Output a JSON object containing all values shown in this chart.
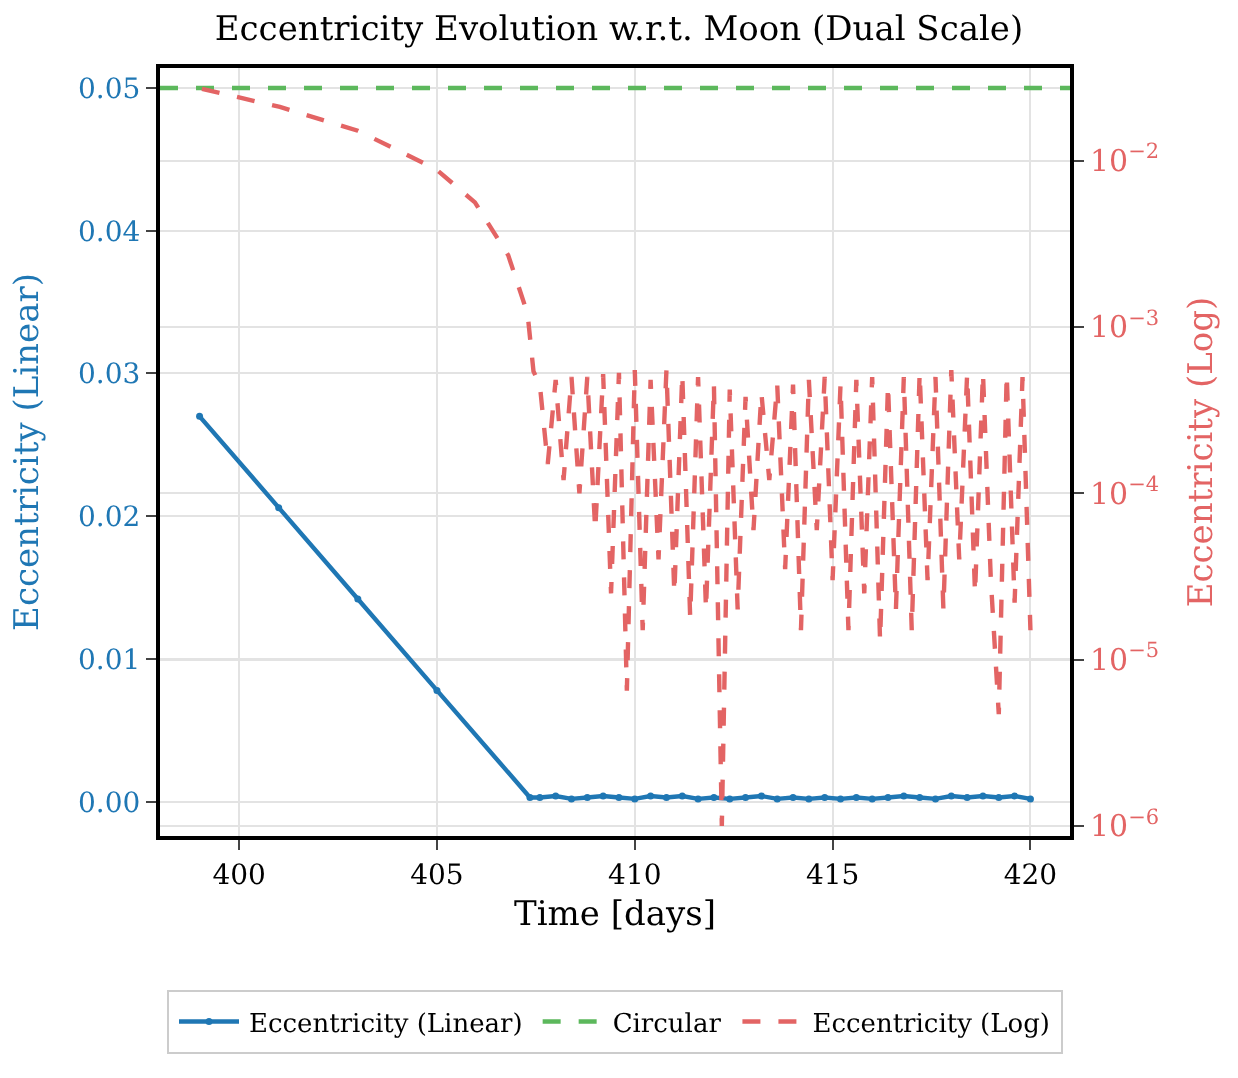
{
  "chart_data": {
    "type": "line",
    "title": "Eccentricity Evolution w.r.t. Moon (Dual Scale)",
    "xlabel": "Time [days]",
    "ylabel": "Eccentricity (Linear)",
    "y2label": "Eccentricity (Log)",
    "xlim": [
      398,
      421
    ],
    "xticks": [
      400,
      405,
      410,
      415,
      420
    ],
    "ylim": [
      -0.0024,
      0.0514
    ],
    "yticks": [
      {
        "value": 0,
        "label": "0.00"
      },
      {
        "value": 0.01,
        "label": "0.01"
      },
      {
        "value": 0.02,
        "label": "0.02"
      },
      {
        "value": 0.03,
        "label": "0.03"
      },
      {
        "value": 0.04,
        "label": "0.04"
      },
      {
        "value": 0.05,
        "label": "0.05"
      }
    ],
    "y2lim": [
      8.7e-07,
      0.036
    ],
    "y2ticks": [
      {
        "value": 1e-06,
        "label": "10$^{−6}$"
      },
      {
        "value": 1e-05,
        "label": "10$^{−5}$"
      },
      {
        "value": 0.0001,
        "label": "10$^{−4}$"
      },
      {
        "value": 0.001,
        "label": "10$^{−3}$"
      },
      {
        "value": 0.01,
        "label": "10$^{−2}$"
      }
    ],
    "log": "y2",
    "grid": true,
    "legend": "bottom",
    "series": [
      {
        "name": "Eccentricity (Linear)",
        "color": "#1f77b4",
        "marker": "circle",
        "line_style": "solid",
        "x": [
          399,
          401,
          403,
          405,
          407.35,
          407.6,
          408.0,
          408.4,
          408.8,
          409.2,
          409.6,
          410.0,
          410.4,
          410.8,
          411.2,
          411.6,
          412.0,
          412.4,
          412.8,
          413.2,
          413.6,
          414.0,
          414.4,
          414.8,
          415.2,
          415.6,
          416.0,
          416.4,
          416.8,
          417.2,
          417.6,
          418.0,
          418.4,
          418.8,
          419.2,
          419.6,
          420.0
        ],
        "values": [
          0.027,
          0.0206,
          0.0142,
          0.0078,
          0.0003,
          0.0003,
          0.0004,
          0.0002,
          0.0003,
          0.0004,
          0.0003,
          0.0002,
          0.0004,
          0.0003,
          0.0004,
          0.0002,
          0.0003,
          0.0002,
          0.0003,
          0.0004,
          0.0002,
          0.0003,
          0.0002,
          0.0003,
          0.0002,
          0.0003,
          0.0002,
          0.0003,
          0.0004,
          0.0003,
          0.0002,
          0.0004,
          0.0003,
          0.0004,
          0.0003,
          0.0004,
          0.0002
        ]
      },
      {
        "name": "Circular",
        "color": "#5cb85c",
        "marker": "none",
        "line_style": "dashed",
        "x": [
          398,
          421
        ],
        "values": [
          0.05,
          0.05
        ]
      },
      {
        "name": "Eccentricity (Log)",
        "color": "#e36464",
        "marker": "none",
        "line_style": "dashed",
        "axis": "y2",
        "x": [
          399.06,
          401.03,
          403.0,
          404.97,
          405.96,
          406.8,
          407.29,
          407.44,
          407.6,
          407.8,
          408.0,
          408.2,
          408.4,
          408.6,
          408.8,
          409.0,
          409.2,
          409.4,
          409.6,
          409.8,
          410.0,
          410.2,
          410.4,
          410.6,
          410.8,
          411.0,
          411.2,
          411.4,
          411.6,
          411.8,
          412.0,
          412.2,
          412.4,
          412.6,
          412.8,
          413.0,
          413.2,
          413.4,
          413.6,
          413.8,
          414.0,
          414.2,
          414.4,
          414.6,
          414.8,
          415.0,
          415.2,
          415.4,
          415.6,
          415.8,
          416.0,
          416.2,
          416.4,
          416.6,
          416.8,
          417.0,
          417.2,
          417.4,
          417.6,
          417.8,
          418.0,
          418.2,
          418.4,
          418.6,
          418.8,
          419.0,
          419.2,
          419.4,
          419.6,
          419.8,
          420.0
        ],
        "values": [
          0.027,
          0.021,
          0.0151,
          0.0089,
          0.0056,
          0.0027,
          0.0012,
          0.00054,
          0.00045,
          0.00015,
          0.00048,
          0.00012,
          0.0005,
          0.0001,
          0.0005,
          6e-05,
          0.00052,
          2.5e-05,
          0.00053,
          6.5e-06,
          0.00055,
          1.5e-05,
          0.00048,
          4e-05,
          0.00055,
          2.5e-05,
          0.00052,
          1.8e-05,
          0.0005,
          2e-05,
          0.00045,
          1e-06,
          0.00042,
          2e-05,
          0.00038,
          6e-05,
          0.0004,
          0.00012,
          0.00045,
          3.5e-05,
          0.00045,
          1.5e-05,
          0.00048,
          6e-05,
          0.0005,
          3e-05,
          0.00045,
          1.5e-05,
          0.00048,
          2.5e-05,
          0.0005,
          1.3e-05,
          0.00045,
          2e-05,
          0.0005,
          1.5e-05,
          0.00053,
          3e-05,
          0.0005,
          2e-05,
          0.00055,
          4e-05,
          0.00052,
          2.5e-05,
          0.00053,
          3e-05,
          4.7e-06,
          0.00052,
          2.2e-05,
          0.0005,
          1.5e-05
        ]
      }
    ]
  }
}
